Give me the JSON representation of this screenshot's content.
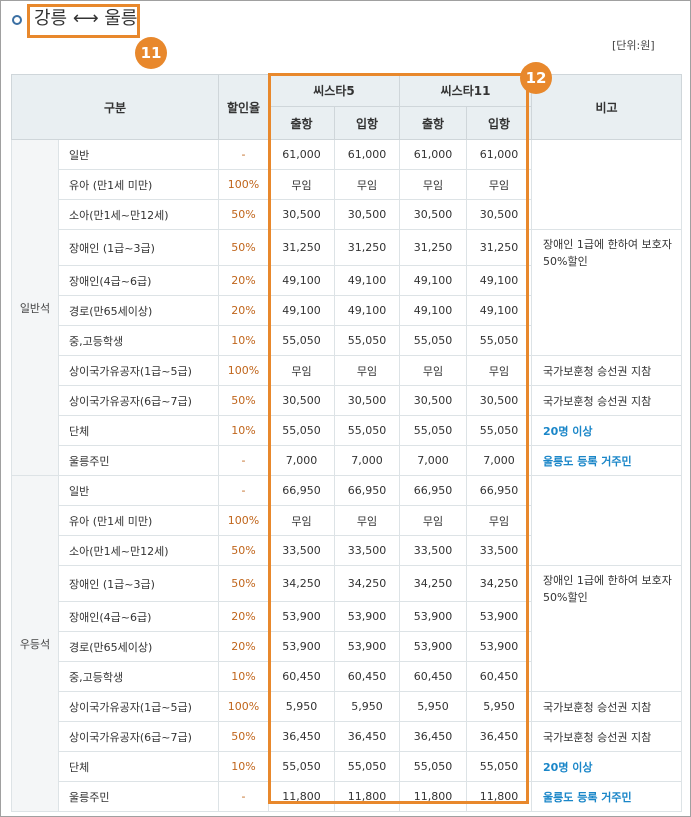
{
  "title": "강릉 ⟷ 울릉",
  "badges": {
    "title": "11",
    "columns": "12"
  },
  "unit": "[단위:원]",
  "headers": {
    "category": "구분",
    "rate": "할인율",
    "ship1": "씨스타5",
    "ship2": "씨스타11",
    "depart": "출항",
    "arrive": "입항",
    "note": "비고"
  },
  "groups": [
    {
      "name": "일반석",
      "rows": [
        {
          "category": "일반",
          "rate": "-",
          "v": [
            "61,000",
            "61,000",
            "61,000",
            "61,000"
          ]
        },
        {
          "category": "유아 (만1세 미만)",
          "rate": "100%",
          "v": [
            "무임",
            "무임",
            "무임",
            "무임"
          ]
        },
        {
          "category": "소아(만1세~만12세)",
          "rate": "50%",
          "v": [
            "30,500",
            "30,500",
            "30,500",
            "30,500"
          ]
        },
        {
          "category": "장애인 (1급~3급)",
          "rate": "50%",
          "v": [
            "31,250",
            "31,250",
            "31,250",
            "31,250"
          ]
        },
        {
          "category": "장애인(4급~6급)",
          "rate": "20%",
          "v": [
            "49,100",
            "49,100",
            "49,100",
            "49,100"
          ]
        },
        {
          "category": "경로(만65세이상)",
          "rate": "20%",
          "v": [
            "49,100",
            "49,100",
            "49,100",
            "49,100"
          ]
        },
        {
          "category": "중,고등학생",
          "rate": "10%",
          "v": [
            "55,050",
            "55,050",
            "55,050",
            "55,050"
          ]
        },
        {
          "category": "상이국가유공자(1급~5급)",
          "rate": "100%",
          "v": [
            "무임",
            "무임",
            "무임",
            "무임"
          ]
        },
        {
          "category": "상이국가유공자(6급~7급)",
          "rate": "50%",
          "v": [
            "30,500",
            "30,500",
            "30,500",
            "30,500"
          ]
        },
        {
          "category": "단체",
          "rate": "10%",
          "v": [
            "55,050",
            "55,050",
            "55,050",
            "55,050"
          ]
        },
        {
          "category": "울릉주민",
          "rate": "-",
          "v": [
            "7,000",
            "7,000",
            "7,000",
            "7,000"
          ]
        }
      ],
      "notes": {
        "disabled": "장애인 1급에 한하여 보호자 50%할인",
        "veteran1": "국가보훈청 승선권 지참",
        "veteran2": "국가보훈청 승선권 지참",
        "group": "20명 이상",
        "resident": "울릉도 등록 거주민"
      }
    },
    {
      "name": "우등석",
      "rows": [
        {
          "category": "일반",
          "rate": "-",
          "v": [
            "66,950",
            "66,950",
            "66,950",
            "66,950"
          ]
        },
        {
          "category": "유아 (만1세 미만)",
          "rate": "100%",
          "v": [
            "무임",
            "무임",
            "무임",
            "무임"
          ]
        },
        {
          "category": "소아(만1세~만12세)",
          "rate": "50%",
          "v": [
            "33,500",
            "33,500",
            "33,500",
            "33,500"
          ]
        },
        {
          "category": "장애인 (1급~3급)",
          "rate": "50%",
          "v": [
            "34,250",
            "34,250",
            "34,250",
            "34,250"
          ]
        },
        {
          "category": "장애인(4급~6급)",
          "rate": "20%",
          "v": [
            "53,900",
            "53,900",
            "53,900",
            "53,900"
          ]
        },
        {
          "category": "경로(만65세이상)",
          "rate": "20%",
          "v": [
            "53,900",
            "53,900",
            "53,900",
            "53,900"
          ]
        },
        {
          "category": "중,고등학생",
          "rate": "10%",
          "v": [
            "60,450",
            "60,450",
            "60,450",
            "60,450"
          ]
        },
        {
          "category": "상이국가유공자(1급~5급)",
          "rate": "100%",
          "v": [
            "5,950",
            "5,950",
            "5,950",
            "5,950"
          ]
        },
        {
          "category": "상이국가유공자(6급~7급)",
          "rate": "50%",
          "v": [
            "36,450",
            "36,450",
            "36,450",
            "36,450"
          ]
        },
        {
          "category": "단체",
          "rate": "10%",
          "v": [
            "55,050",
            "55,050",
            "55,050",
            "55,050"
          ]
        },
        {
          "category": "울릉주민",
          "rate": "-",
          "v": [
            "11,800",
            "11,800",
            "11,800",
            "11,800"
          ]
        }
      ],
      "notes": {
        "disabled": "장애인 1급에 한하여 보호자 50%할인",
        "veteran1": "국가보훈청 승선권 지참",
        "veteran2": "국가보훈청 승선권 지참",
        "group": "20명 이상",
        "resident": "울릉도 등록 거주민"
      }
    }
  ]
}
